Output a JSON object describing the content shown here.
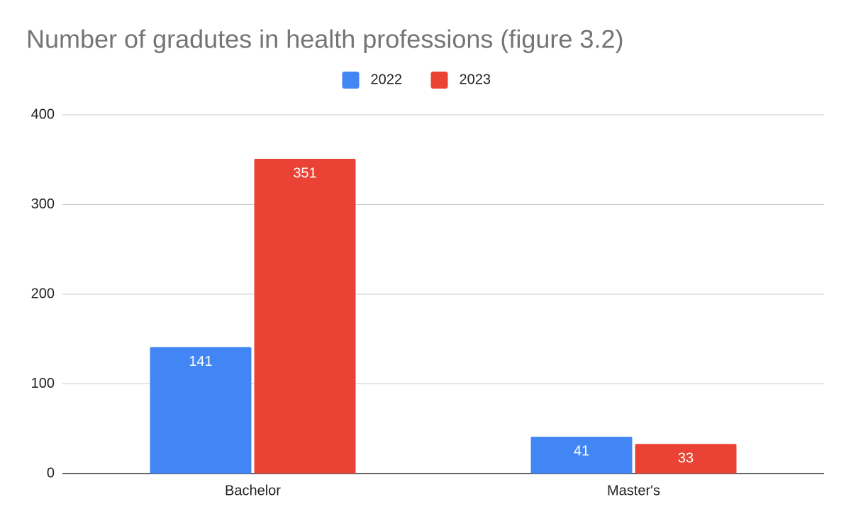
{
  "chart_data": {
    "type": "bar",
    "title": "Number of gradutes in health professions (figure 3.2)",
    "categories": [
      "Bachelor",
      "Master's"
    ],
    "series": [
      {
        "name": "2022",
        "color": "#4285f4",
        "values": [
          141,
          41
        ]
      },
      {
        "name": "2023",
        "color": "#ea4335",
        "values": [
          351,
          33
        ]
      }
    ],
    "ylim": [
      0,
      400
    ],
    "yticks": [
      0,
      100,
      200,
      300,
      400
    ],
    "grid": true,
    "legend": "top"
  }
}
